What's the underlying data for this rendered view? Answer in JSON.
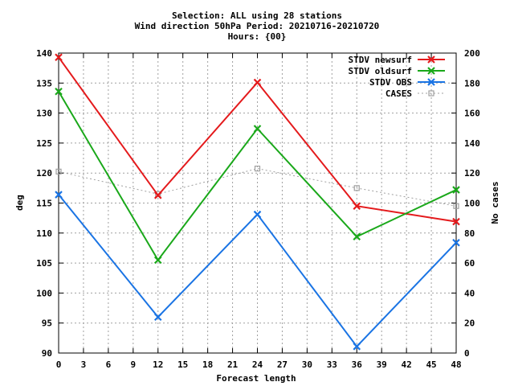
{
  "chart_data": {
    "type": "line",
    "title_lines": [
      "Selection: ALL using    28 stations",
      "Wind direction 50hPa   Period: 20210716-20210720",
      "Hours: {00}"
    ],
    "xlabel": "Forecast length",
    "ylabel": "deg",
    "y2label": "No cases",
    "xlim": [
      0,
      48
    ],
    "ylim": [
      90,
      140
    ],
    "y2lim": [
      0,
      200
    ],
    "xticks": [
      0,
      3,
      6,
      9,
      12,
      15,
      18,
      21,
      24,
      27,
      30,
      33,
      36,
      39,
      42,
      45,
      48
    ],
    "yticks": [
      90,
      95,
      100,
      105,
      110,
      115,
      120,
      125,
      130,
      135,
      140
    ],
    "y2ticks": [
      0,
      20,
      40,
      60,
      80,
      100,
      120,
      140,
      160,
      180,
      200
    ],
    "grid": true,
    "legend_position": "top-right",
    "x": [
      0,
      12,
      24,
      36,
      48
    ],
    "series": [
      {
        "name": "STDV newsurf",
        "axis": "left",
        "color": "#e41a1c",
        "marker": "x",
        "values": [
          139.3,
          116.3,
          135.1,
          114.5,
          111.9
        ]
      },
      {
        "name": "STDV oldsurf",
        "axis": "left",
        "color": "#1aa81a",
        "marker": "x",
        "values": [
          133.6,
          105.5,
          127.4,
          109.4,
          117.2
        ]
      },
      {
        "name": "STDV OBS",
        "axis": "left",
        "color": "#1a74e4",
        "marker": "x",
        "values": [
          116.4,
          96.0,
          113.1,
          91.1,
          108.4
        ]
      },
      {
        "name": "CASES",
        "axis": "right",
        "color": "#a0a0a0",
        "marker": "square",
        "dashed": true,
        "values": [
          121,
          106,
          123,
          110,
          98
        ]
      }
    ]
  }
}
